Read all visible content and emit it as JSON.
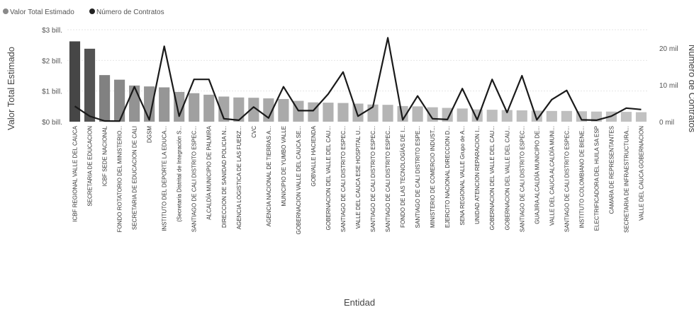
{
  "chart_data": {
    "type": "bar",
    "title": "",
    "legend": {
      "position": "top-left",
      "items": [
        {
          "name": "Valor Total Estimado",
          "color": "#8a8a8a",
          "marker": "circle"
        },
        {
          "name": "Número de Contratos",
          "color": "#222222",
          "marker": "circle"
        }
      ]
    },
    "xlabel": "Entidad",
    "ylabel": "Valor Total Estimado",
    "y2label": "Número de Contratos",
    "ylim": [
      0,
      3
    ],
    "y2lim": [
      0,
      25000
    ],
    "y_ticks": [
      {
        "value": 0,
        "label": "$0 bill."
      },
      {
        "value": 1,
        "label": "$1 bill."
      },
      {
        "value": 2,
        "label": "$2 bill."
      },
      {
        "value": 3,
        "label": "$3 bill."
      }
    ],
    "y2_ticks": [
      {
        "value": 0,
        "label": "0 mil"
      },
      {
        "value": 10000,
        "label": "10 mil"
      },
      {
        "value": 20000,
        "label": "20 mil"
      }
    ],
    "grid": true,
    "categories": [
      "ICBF REGIONAL VALLE DEL CAUCA",
      "SECRETARIA DE EDUCACION",
      "ICBF SEDE NACIONAL",
      "FONDO ROTATORIO DEL MINISTERIO...",
      "SECRETARIA DE EDUCACION DE CALI",
      "DGSM",
      "INSTITUTO DEL DEPORTE LA EDUCA...",
      "(Secretaría Distrital de Integración S...",
      "SANTIAGO DE CALI DISTRITO ESPEC...",
      "ALCALDÍA MUNICIPIO DE PALMIRA",
      "DIRECCION DE SANIDAD POLICIA N...",
      "AGENCIA LOGISTICA DE LAS FUERZ...",
      "CVC",
      "AGENCIA NACIONAL DE TIERRAS A...",
      "MUNICIPIO DE YUMBO VALLE",
      "GOBERNACION VALLE DEL CAUCA SE...",
      "GOBVALLE HACIENDA",
      "GOBERNACION DEL VALLE DEL CAU...",
      "SANTIAGO DE CALI DISTRITO ESPEC...",
      "VALLE DEL CAUCA ESE HOSPITAL U...",
      "SANTIAGO DE CALI DISTRITO ESPEC...",
      "SANTIAGO DE CALI DISTRITO ESPEC...",
      "FONDO DE LAS TECNOLOGÍAS DE I...",
      "SANTIAGO DE CALI DISTRITO ESPE...",
      "MINISTERIO DE COMERCIO INDUST...",
      "EJERCITO NACIONAL DIRECCION D...",
      "SENA REGIONAL VALLE Grupo de A...",
      "UNIDAD ATENCION REPARACION I...",
      "GOBERNACION DEL VALLE DEL CAU...",
      "GOBERNACION DEL VALLE DEL CAU...",
      "SANTIAGO DE CALI DISTRITO ESPEC...",
      "GUAJIRA ALCALDÍA MUNICIPIO DE...",
      "VALLE DEL CAUCA ALCALDÍA MUNI...",
      "SANTIAGO DE CALI DISTRITO ESPEC...",
      "INSTITUTO COLOMBIANO DE BIENE...",
      "ELECTRIFICADORA DEL HUILA SA ESP",
      "CAMARA DE REPRESENTANTES",
      "SECRETARIA DE INFRAESTRUCTURA...",
      "VALLE DEL CAUCA GOBERNACION"
    ],
    "series": [
      {
        "name": "Valor Total Estimado",
        "type": "bar",
        "axis": "left",
        "values": [
          2.62,
          2.38,
          1.52,
          1.37,
          1.18,
          1.15,
          1.12,
          0.97,
          0.93,
          0.88,
          0.82,
          0.79,
          0.78,
          0.76,
          0.74,
          0.68,
          0.63,
          0.62,
          0.61,
          0.59,
          0.56,
          0.55,
          0.51,
          0.5,
          0.47,
          0.45,
          0.43,
          0.4,
          0.39,
          0.38,
          0.37,
          0.36,
          0.35,
          0.35,
          0.34,
          0.33,
          0.33,
          0.32,
          0.31
        ]
      },
      {
        "name": "Número de Contratos",
        "type": "line",
        "axis": "right",
        "values": [
          4200,
          1500,
          200,
          150,
          9500,
          500,
          20500,
          1500,
          11500,
          11500,
          800,
          400,
          4000,
          1000,
          9500,
          3000,
          3000,
          7500,
          13500,
          1500,
          4000,
          22800,
          500,
          7000,
          800,
          600,
          9000,
          500,
          11500,
          2500,
          12500,
          500,
          6000,
          8500,
          500,
          400,
          1500,
          3700,
          3300
        ]
      }
    ]
  }
}
